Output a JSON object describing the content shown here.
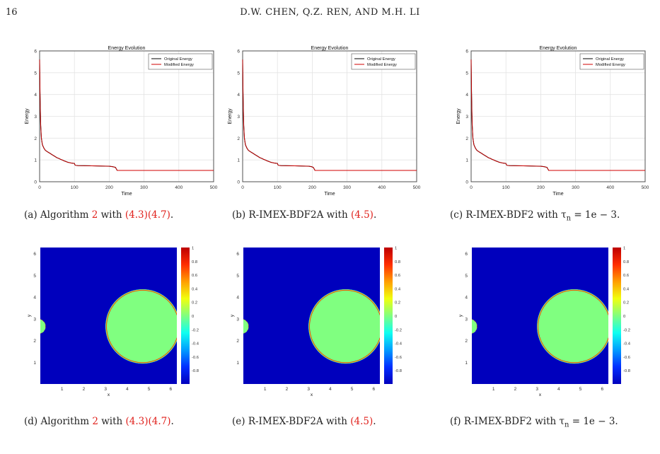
{
  "page": {
    "number": "16",
    "running_head": "D.W. CHEN, Q.Z. REN, AND M.H. LI"
  },
  "panels": [
    {
      "caption": {
        "label": "(a)",
        "pre": "Algorithm ",
        "r1": "2",
        "mid": " with ",
        "r2": "(4.3)(4.7)",
        "post": "."
      }
    },
    {
      "caption": {
        "label": "(b)",
        "pre": "R-IMEX-BDF2A with ",
        "r1": "",
        "mid": "",
        "r2": "(4.5)",
        "post": "."
      }
    },
    {
      "caption": {
        "label": "(c)",
        "pre": "R-IMEX-BDF2 with τ",
        "sub": "n",
        "post": " = 1e − 3."
      }
    },
    {
      "caption": {
        "label": "(d)",
        "pre": "Algorithm ",
        "r1": "2",
        "mid": " with ",
        "r2": "(4.3)(4.7)",
        "post": "."
      }
    },
    {
      "caption": {
        "label": "(e)",
        "pre": "R-IMEX-BDF2A with ",
        "r1": "",
        "mid": "",
        "r2": "(4.5)",
        "post": "."
      }
    },
    {
      "caption": {
        "label": "(f)",
        "pre": "R-IMEX-BDF2 with τ",
        "sub": "n",
        "post": " = 1e − 3."
      }
    }
  ],
  "chart_data": [
    {
      "type": "line",
      "title": "Energy Evolution",
      "xlabel": "Time",
      "ylabel": "Energy",
      "xlim": [
        0,
        500
      ],
      "ylim": [
        0,
        6
      ],
      "xticks": [
        "0",
        "100",
        "200",
        "300",
        "400",
        "500"
      ],
      "yticks": [
        "0",
        "1",
        "2",
        "3",
        "4",
        "5",
        "6"
      ],
      "grid": true,
      "legend": "top-right",
      "series": [
        {
          "name": "Original Energy",
          "color": "#000000"
        },
        {
          "name": "Modified Energy",
          "color": "#d00000"
        }
      ],
      "x": [
        0,
        1,
        2,
        3,
        5,
        8,
        12,
        16,
        20,
        25,
        30,
        35,
        40,
        45,
        50,
        55,
        60,
        65,
        70,
        75,
        80,
        85,
        90,
        95,
        100,
        101,
        104,
        110,
        150,
        200,
        210,
        218,
        220,
        223,
        300,
        400,
        500
      ],
      "y": [
        5.6,
        4.2,
        3.3,
        2.6,
        2.0,
        1.7,
        1.55,
        1.45,
        1.4,
        1.35,
        1.3,
        1.25,
        1.2,
        1.15,
        1.1,
        1.07,
        1.03,
        1.0,
        0.96,
        0.93,
        0.9,
        0.88,
        0.86,
        0.85,
        0.84,
        0.78,
        0.75,
        0.74,
        0.73,
        0.71,
        0.69,
        0.66,
        0.6,
        0.52,
        0.52,
        0.52,
        0.52
      ]
    },
    {
      "type": "line",
      "title": "Energy Evolution",
      "xlabel": "Time",
      "ylabel": "Energy",
      "xlim": [
        0,
        500
      ],
      "ylim": [
        0,
        6
      ],
      "xticks": [
        "0",
        "100",
        "200",
        "300",
        "400",
        "500"
      ],
      "yticks": [
        "0",
        "1",
        "2",
        "3",
        "4",
        "5",
        "6"
      ],
      "grid": true,
      "legend": "top-right",
      "series": [
        {
          "name": "Original Energy",
          "color": "#000000"
        },
        {
          "name": "Modified Energy",
          "color": "#d00000"
        }
      ],
      "x": [
        0,
        1,
        2,
        3,
        5,
        8,
        12,
        16,
        20,
        25,
        30,
        35,
        40,
        45,
        50,
        55,
        60,
        65,
        70,
        75,
        80,
        85,
        90,
        95,
        100,
        101,
        104,
        110,
        150,
        190,
        198,
        203,
        205,
        208,
        300,
        400,
        500
      ],
      "y": [
        5.6,
        4.2,
        3.3,
        2.6,
        2.0,
        1.7,
        1.55,
        1.45,
        1.4,
        1.35,
        1.3,
        1.25,
        1.2,
        1.15,
        1.1,
        1.07,
        1.03,
        1.0,
        0.96,
        0.93,
        0.9,
        0.88,
        0.86,
        0.85,
        0.84,
        0.78,
        0.75,
        0.74,
        0.73,
        0.71,
        0.69,
        0.66,
        0.6,
        0.52,
        0.52,
        0.52,
        0.52
      ]
    },
    {
      "type": "line",
      "title": "Energy Evolution",
      "xlabel": "Time",
      "ylabel": "Energy",
      "xlim": [
        0,
        500
      ],
      "ylim": [
        0,
        6
      ],
      "xticks": [
        "0",
        "100",
        "200",
        "300",
        "400",
        "500"
      ],
      "yticks": [
        "0",
        "1",
        "2",
        "3",
        "4",
        "5",
        "6"
      ],
      "grid": true,
      "legend": "top-right",
      "series": [
        {
          "name": "Original Energy",
          "color": "#000000"
        },
        {
          "name": "Modified Energy",
          "color": "#d00000"
        }
      ],
      "x": [
        0,
        1,
        2,
        3,
        5,
        8,
        12,
        16,
        20,
        25,
        30,
        35,
        40,
        45,
        50,
        55,
        60,
        65,
        70,
        75,
        80,
        85,
        90,
        95,
        100,
        101,
        104,
        110,
        150,
        200,
        210,
        218,
        220,
        223,
        300,
        400,
        500
      ],
      "y": [
        5.6,
        4.2,
        3.3,
        2.6,
        2.0,
        1.7,
        1.55,
        1.45,
        1.4,
        1.35,
        1.3,
        1.25,
        1.2,
        1.15,
        1.1,
        1.07,
        1.03,
        1.0,
        0.96,
        0.93,
        0.9,
        0.88,
        0.86,
        0.85,
        0.84,
        0.78,
        0.75,
        0.74,
        0.73,
        0.71,
        0.69,
        0.66,
        0.6,
        0.52,
        0.52,
        0.52,
        0.52
      ]
    },
    {
      "type": "heatmap",
      "xlabel": "x",
      "ylabel": "y",
      "xlim": [
        0,
        6.2832
      ],
      "ylim": [
        0,
        6.2832
      ],
      "xticks": [
        "1",
        "2",
        "3",
        "4",
        "5",
        "6"
      ],
      "yticks": [
        "1",
        "2",
        "3",
        "4",
        "5",
        "6"
      ],
      "colorbar": {
        "min": -1,
        "max": 1,
        "ticks": [
          "1",
          "0.8",
          "0.6",
          "0.4",
          "0.2",
          "0",
          "-0.2",
          "-0.4",
          "-0.6",
          "-0.8"
        ]
      },
      "background_value": -1,
      "regions": [
        {
          "shape": "circle",
          "cx": 4.71,
          "cy": 2.65,
          "r": 1.72,
          "value": 1
        },
        {
          "shape": "circle",
          "cx": -0.1,
          "cy": 2.65,
          "r": 0.35,
          "value": 1
        }
      ]
    },
    {
      "type": "heatmap",
      "xlabel": "x",
      "ylabel": "y",
      "xlim": [
        0,
        6.2832
      ],
      "ylim": [
        0,
        6.2832
      ],
      "xticks": [
        "1",
        "2",
        "3",
        "4",
        "5",
        "6"
      ],
      "yticks": [
        "1",
        "2",
        "3",
        "4",
        "5",
        "6"
      ],
      "colorbar": {
        "min": -1,
        "max": 1,
        "ticks": [
          "1",
          "0.8",
          "0.6",
          "0.4",
          "0.2",
          "0",
          "-0.2",
          "-0.4",
          "-0.6",
          "-0.8"
        ]
      },
      "background_value": -1,
      "regions": [
        {
          "shape": "circle",
          "cx": 4.71,
          "cy": 2.65,
          "r": 1.72,
          "value": 1
        },
        {
          "shape": "circle",
          "cx": -0.1,
          "cy": 2.65,
          "r": 0.35,
          "value": 1
        }
      ]
    },
    {
      "type": "heatmap",
      "xlabel": "x",
      "ylabel": "y",
      "xlim": [
        0,
        6.2832
      ],
      "ylim": [
        0,
        6.2832
      ],
      "xticks": [
        "1",
        "2",
        "3",
        "4",
        "5",
        "6"
      ],
      "yticks": [
        "1",
        "2",
        "3",
        "4",
        "5",
        "6"
      ],
      "colorbar": {
        "min": -1,
        "max": 1,
        "ticks": [
          "1",
          "0.8",
          "0.6",
          "0.4",
          "0.2",
          "0",
          "-0.2",
          "-0.4",
          "-0.6",
          "-0.8"
        ]
      },
      "background_value": -1,
      "regions": [
        {
          "shape": "circle",
          "cx": 4.71,
          "cy": 2.65,
          "r": 1.72,
          "value": 1
        },
        {
          "shape": "circle",
          "cx": -0.1,
          "cy": 2.65,
          "r": 0.35,
          "value": 1
        }
      ]
    }
  ]
}
